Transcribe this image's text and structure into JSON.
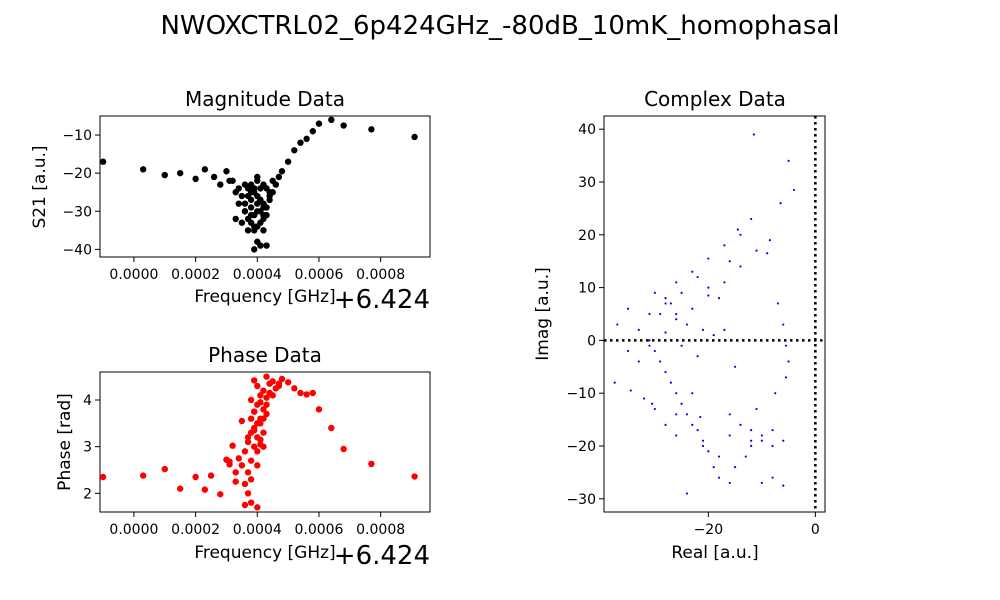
{
  "figure": {
    "title": "NWOXCTRL02_6p424GHz_-80dB_10mK_homophasal"
  },
  "chart_data": [
    {
      "type": "scatter",
      "title": "Magnitude Data",
      "xlabel": "Frequency [GHz]",
      "ylabel": "S21 [a.u.]",
      "x_offset_label": "+6.424",
      "xlim": [
        -0.00011,
        0.00096
      ],
      "ylim": [
        -42,
        -5
      ],
      "xticks": [
        0.0,
        0.0002,
        0.0004,
        0.0006,
        0.0008
      ],
      "xtick_labels": [
        "0.0000",
        "0.0002",
        "0.0004",
        "0.0006",
        "0.0008"
      ],
      "yticks": [
        -40,
        -30,
        -20,
        -10
      ],
      "ytick_labels": [
        "−40",
        "−30",
        "−20",
        "−10"
      ],
      "color": "#000000",
      "x": [
        -0.0001,
        3e-05,
        0.0001,
        0.00015,
        0.0002,
        0.00023,
        0.00026,
        0.00028,
        0.0003,
        0.00031,
        0.00032,
        0.00033,
        0.00034,
        0.00035,
        0.00036,
        0.00036,
        0.00037,
        0.00037,
        0.00038,
        0.00038,
        0.00038,
        0.00039,
        0.00039,
        0.00039,
        0.0004,
        0.0004,
        0.0004,
        0.0004,
        0.00041,
        0.00041,
        0.00041,
        0.00042,
        0.00042,
        0.00042,
        0.00043,
        0.00043,
        0.00044,
        0.00045,
        0.00046,
        0.00047,
        0.00048,
        0.0005,
        0.00052,
        0.00054,
        0.00056,
        0.00058,
        0.0006,
        0.00064,
        0.00068,
        0.00077,
        0.00091,
        0.00034,
        0.00036,
        0.00037,
        0.00038,
        0.00039,
        0.0004,
        0.00041,
        0.00042,
        0.00043,
        0.00044,
        0.00035,
        0.00037,
        0.00039,
        0.00041,
        0.00043,
        0.00038,
        0.0004,
        0.00042,
        0.00036,
        0.00044,
        0.00045,
        0.00033,
        0.0004,
        0.00039,
        0.00041,
        0.00038,
        0.00042
      ],
      "y": [
        -17,
        -19,
        -20.5,
        -20,
        -21.5,
        -19,
        -21,
        -23,
        -19.5,
        -22,
        -22,
        -25,
        -24,
        -26,
        -28,
        -30,
        -24,
        -32,
        -27,
        -29,
        -33,
        -25,
        -31,
        -35,
        -22,
        -28,
        -30,
        -34,
        -24,
        -27,
        -33,
        -23,
        -29,
        -35,
        -24,
        -31,
        -26,
        -25,
        -23,
        -21,
        -19.5,
        -17,
        -14,
        -12,
        -11,
        -9,
        -7,
        -6,
        -7.5,
        -8.5,
        -10.5,
        -28,
        -30,
        -26,
        -31,
        -24,
        -38,
        -27,
        -32,
        -29,
        -25,
        -33,
        -35,
        -40,
        -39,
        -39,
        -23,
        -26,
        -28,
        -23,
        -27,
        -22,
        -32,
        -21,
        -34,
        -30,
        -25,
        -31
      ]
    },
    {
      "type": "scatter",
      "title": "Phase Data",
      "xlabel": "Frequency [GHz]",
      "ylabel": "Phase [rad]",
      "x_offset_label": "+6.424",
      "xlim": [
        -0.00011,
        0.00096
      ],
      "ylim": [
        1.6,
        4.6
      ],
      "xticks": [
        0.0,
        0.0002,
        0.0004,
        0.0006,
        0.0008
      ],
      "xtick_labels": [
        "0.0000",
        "0.0002",
        "0.0004",
        "0.0006",
        "0.0008"
      ],
      "yticks": [
        2,
        3,
        4
      ],
      "ytick_labels": [
        "2",
        "3",
        "4"
      ],
      "color": "#ff0000",
      "x": [
        -0.0001,
        3e-05,
        0.0001,
        0.00015,
        0.0002,
        0.00023,
        0.00025,
        0.00028,
        0.0003,
        0.00031,
        0.00032,
        0.00033,
        0.00034,
        0.00035,
        0.00036,
        0.00036,
        0.00037,
        0.00037,
        0.00038,
        0.00038,
        0.00038,
        0.00039,
        0.00039,
        0.00039,
        0.0004,
        0.0004,
        0.0004,
        0.0004,
        0.00041,
        0.00041,
        0.00041,
        0.00042,
        0.00042,
        0.00042,
        0.00043,
        0.00043,
        0.00044,
        0.00045,
        0.00046,
        0.00047,
        0.00048,
        0.0005,
        0.00052,
        0.00054,
        0.00056,
        0.00058,
        0.0006,
        0.00064,
        0.00068,
        0.00077,
        0.00091,
        0.00036,
        0.00037,
        0.00038,
        0.00039,
        0.0004,
        0.00041,
        0.00042,
        0.00043,
        0.00044,
        0.00037,
        0.00038,
        0.00039,
        0.0004,
        0.00041,
        0.0004,
        0.00042,
        0.00043,
        0.00039,
        0.00038,
        0.00041,
        0.00033,
        0.00031,
        0.00035,
        0.00045,
        0.00047
      ],
      "y": [
        2.35,
        2.38,
        2.52,
        2.1,
        2.35,
        2.08,
        2.38,
        1.98,
        2.72,
        2.68,
        3.02,
        2.25,
        2.75,
        2.6,
        2.2,
        2.9,
        3.1,
        2.45,
        3.3,
        2.7,
        3.6,
        3.0,
        3.4,
        3.75,
        2.9,
        3.2,
        3.5,
        3.9,
        3.05,
        3.6,
        4.1,
        3.3,
        3.8,
        4.2,
        3.7,
        4.05,
        4.35,
        4.4,
        4.25,
        4.3,
        4.45,
        4.38,
        4.25,
        4.15,
        4.12,
        4.15,
        3.8,
        3.4,
        2.95,
        2.63,
        2.36,
        1.75,
        2.0,
        1.8,
        3.35,
        1.7,
        3.5,
        3.6,
        3.9,
        4.15,
        3.2,
        4.0,
        3.75,
        4.3,
        3.95,
        2.6,
        3.0,
        4.5,
        4.42,
        2.3,
        3.15,
        2.45,
        2.62,
        3.55,
        4.1,
        4.35
      ]
    },
    {
      "type": "scatter",
      "title": "Complex Data",
      "xlabel": "Real [a.u.]",
      "ylabel": "Imag [a.u.]",
      "xlim": [
        -39.5,
        1.8
      ],
      "ylim": [
        -32.5,
        42.5
      ],
      "xticks": [
        -20,
        0
      ],
      "xtick_labels": [
        "−20",
        "0"
      ],
      "yticks": [
        -30,
        -20,
        -10,
        0,
        10,
        20,
        30,
        40
      ],
      "ytick_labels": [
        "−30",
        "−20",
        "−10",
        "0",
        "10",
        "20",
        "30",
        "40"
      ],
      "color": "#0000ff",
      "hline": 0,
      "vline": 0,
      "x": [
        -11.5,
        -4,
        -5,
        -6.5,
        -8.5,
        -12,
        -14.5,
        -17,
        -20,
        -23,
        -26,
        -28,
        -31,
        -33,
        -35,
        -37.5,
        -34.5,
        -30.5,
        -26,
        -21.5,
        -16,
        -11,
        -7.5,
        -5.5,
        -5,
        -5.5,
        -6,
        -7,
        -9,
        -11,
        -14,
        -17,
        -20,
        -23,
        -26,
        -28,
        -31,
        -33,
        -35,
        -37,
        -8,
        -10,
        -12,
        -13,
        -15,
        -16,
        -18,
        -19,
        -20,
        -21,
        -22,
        -23,
        -24,
        -25,
        -26,
        -27,
        -28,
        -29,
        -30,
        -31,
        -24,
        -26,
        -28,
        -30,
        -32,
        -22,
        -20,
        -18,
        -16,
        -14,
        -12,
        -10,
        -8,
        -6,
        -25,
        -22,
        -19,
        -17,
        -15,
        -25,
        -27,
        -29,
        -21,
        -18,
        -16,
        -14,
        -12,
        -10,
        -8,
        -6,
        -24,
        -26,
        -28,
        -30,
        -23,
        -21
      ],
      "y": [
        39,
        28.5,
        34,
        26,
        19,
        23,
        21,
        18,
        15.5,
        13,
        11,
        8,
        5,
        2,
        -2,
        -8,
        -9.5,
        -12,
        -14,
        -14.5,
        -14,
        -13,
        -10,
        -7,
        -4,
        -1,
        3,
        7,
        16.5,
        17,
        14,
        11,
        8.5,
        6,
        4,
        1.5,
        -1,
        -4,
        6,
        3,
        -17,
        -19,
        -20,
        -22,
        -24,
        -27,
        -26,
        -24,
        -21,
        -19,
        -17,
        -16,
        -14,
        -12,
        -10,
        -8,
        -6,
        -4,
        -2,
        0,
        -29,
        -18,
        -16,
        -13,
        -11,
        12,
        10,
        8,
        15,
        20,
        -19,
        -27,
        -26,
        -27.5,
        -1,
        -3,
        1,
        2,
        -5,
        9,
        7,
        5,
        -20,
        -22,
        -18,
        -16,
        -17,
        -18,
        -20,
        -19,
        3,
        5,
        7,
        9,
        -10,
        2
      ]
    }
  ]
}
